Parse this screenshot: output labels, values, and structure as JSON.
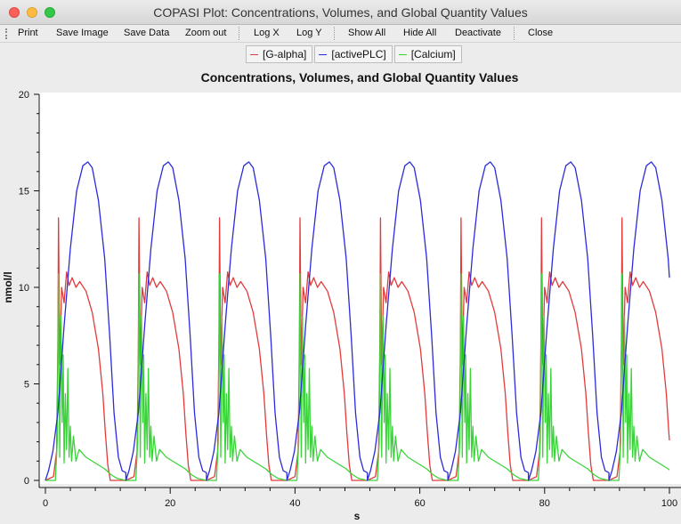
{
  "window": {
    "title": "COPASI Plot: Concentrations, Volumes, and Global Quantity Values"
  },
  "toolbar": {
    "print": "Print",
    "save_image": "Save Image",
    "save_data": "Save Data",
    "zoom_out": "Zoom out",
    "log_x": "Log X",
    "log_y": "Log Y",
    "show_all": "Show All",
    "hide_all": "Hide All",
    "deactivate": "Deactivate",
    "close": "Close"
  },
  "legend": [
    "[G-alpha]",
    "[activePLC]",
    "[Calcium]"
  ],
  "colors": {
    "galpha": "#e23b3b",
    "plc": "#2b2bdb",
    "calcium": "#3ad43a"
  },
  "chart_data": {
    "type": "line",
    "title": "Concentrations, Volumes, and Global Quantity Values",
    "xlabel": "s",
    "ylabel": "nmol/l",
    "xlim": [
      0,
      100
    ],
    "ylim": [
      0,
      20
    ],
    "xticks": [
      "0",
      "20",
      "40",
      "60",
      "80",
      "100"
    ],
    "yticks": [
      "0",
      "5",
      "10",
      "15",
      "20"
    ],
    "grid": false,
    "period": 12.9,
    "series": [
      {
        "name": "[G-alpha]",
        "color": "#e23b3b",
        "t": [
          0,
          1.3,
          1.8,
          2.0,
          2.1,
          2.3,
          2.6,
          3.0,
          3.4,
          3.8,
          4.3,
          4.9,
          5.5,
          6.5,
          7.5,
          8.5,
          9.2,
          9.6,
          10.0,
          10.4,
          12.9
        ],
        "y": [
          0,
          0.2,
          1.5,
          7,
          13.6,
          6,
          10,
          9.2,
          10.8,
          10.1,
          10.5,
          10.0,
          10.3,
          9.8,
          8.7,
          6.8,
          4.5,
          2.5,
          0.8,
          0,
          0
        ]
      },
      {
        "name": "[activePLC]",
        "color": "#2b2bdb",
        "t": [
          0,
          0.5,
          1.2,
          2.0,
          3.0,
          4.0,
          5.0,
          6.0,
          6.8,
          7.5,
          8.5,
          9.5,
          10.3,
          11.0,
          11.7,
          12.3,
          12.9
        ],
        "y": [
          0,
          0.5,
          1.5,
          3.5,
          8.0,
          12.0,
          15.0,
          16.3,
          16.5,
          16.2,
          14.5,
          11.5,
          7.5,
          3.5,
          1.2,
          0.5,
          0.4
        ]
      },
      {
        "name": "[Calcium]",
        "color": "#3ad43a",
        "t": [
          0,
          1.6,
          1.9,
          2.1,
          2.3,
          2.5,
          2.7,
          2.85,
          3.0,
          3.2,
          3.4,
          3.6,
          3.8,
          4.0,
          4.2,
          4.5,
          4.9,
          5.4,
          6.5,
          8.0,
          9.5,
          10.5,
          11.5,
          12.9
        ],
        "y": [
          0,
          0,
          2,
          10.7,
          1.2,
          8.5,
          3.0,
          6.5,
          0.9,
          4.5,
          1.6,
          5.8,
          1.2,
          2.8,
          1.0,
          2.3,
          1.0,
          1.6,
          1.2,
          0.9,
          0.6,
          0.3,
          0.1,
          0
        ]
      }
    ]
  }
}
